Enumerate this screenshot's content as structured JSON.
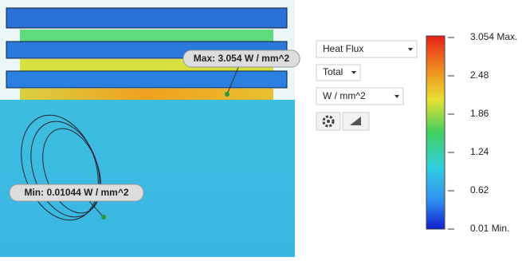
{
  "viewport": {
    "max_label": "Max: 3.054 W / mm^2",
    "min_label": "Min: 0.01044 W / mm^2"
  },
  "controls": {
    "result_type": "Heat Flux",
    "component": "Total",
    "unit": "W / mm^2"
  },
  "legend": {
    "labels": [
      "3.054 Max.",
      "2.48",
      "1.86",
      "1.24",
      "0.62",
      "0.01 Min."
    ]
  }
}
